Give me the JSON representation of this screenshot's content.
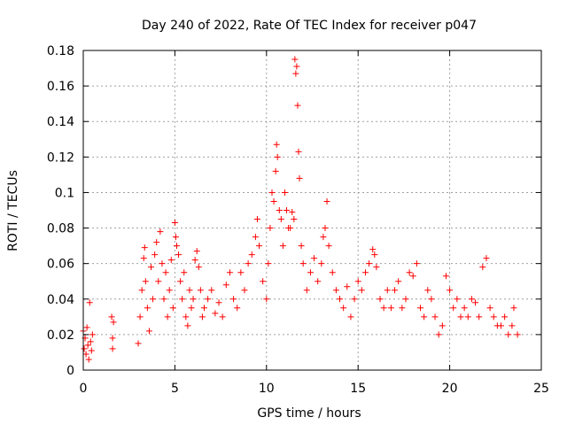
{
  "chart_data": {
    "type": "scatter",
    "title": "Day 240 of 2022, Rate Of TEC Index for receiver p047",
    "xlabel": "GPS time / hours",
    "ylabel": "ROTI / TECUs",
    "xlim": [
      0,
      25
    ],
    "ylim": [
      0,
      0.18
    ],
    "xticks": [
      0,
      5,
      10,
      15,
      20,
      25
    ],
    "yticks": [
      0,
      0.02,
      0.04,
      0.06,
      0.08,
      0.1,
      0.12,
      0.14,
      0.16,
      0.18
    ],
    "xtick_labels": [
      "0",
      "5",
      "10",
      "15",
      "20",
      "25"
    ],
    "ytick_labels": [
      "0",
      "0.02",
      "0.04",
      "0.06",
      "0.08",
      "0.1",
      "0.12",
      "0.14",
      "0.16",
      "0.18"
    ],
    "grid": true,
    "marker": "+",
    "color": "#ff0000",
    "series": [
      {
        "points": [
          [
            0.0,
            0.022
          ],
          [
            0.05,
            0.012
          ],
          [
            0.1,
            0.018
          ],
          [
            0.15,
            0.009
          ],
          [
            0.2,
            0.024
          ],
          [
            0.25,
            0.014
          ],
          [
            0.3,
            0.006
          ],
          [
            0.35,
            0.038
          ],
          [
            0.4,
            0.016
          ],
          [
            0.45,
            0.011
          ],
          [
            0.5,
            0.02
          ],
          [
            1.55,
            0.03
          ],
          [
            1.6,
            0.018
          ],
          [
            1.6,
            0.012
          ],
          [
            1.65,
            0.027
          ],
          [
            3.0,
            0.015
          ],
          [
            3.1,
            0.03
          ],
          [
            3.2,
            0.045
          ],
          [
            3.3,
            0.063
          ],
          [
            3.35,
            0.069
          ],
          [
            3.4,
            0.05
          ],
          [
            3.5,
            0.035
          ],
          [
            3.6,
            0.022
          ],
          [
            3.7,
            0.058
          ],
          [
            3.8,
            0.04
          ],
          [
            3.9,
            0.065
          ],
          [
            4.0,
            0.072
          ],
          [
            4.1,
            0.05
          ],
          [
            4.2,
            0.078
          ],
          [
            4.3,
            0.06
          ],
          [
            4.4,
            0.04
          ],
          [
            4.5,
            0.055
          ],
          [
            4.6,
            0.03
          ],
          [
            4.7,
            0.045
          ],
          [
            4.8,
            0.062
          ],
          [
            4.9,
            0.035
          ],
          [
            5.0,
            0.083
          ],
          [
            5.05,
            0.075
          ],
          [
            5.1,
            0.07
          ],
          [
            5.2,
            0.065
          ],
          [
            5.3,
            0.05
          ],
          [
            5.4,
            0.04
          ],
          [
            5.5,
            0.055
          ],
          [
            5.6,
            0.03
          ],
          [
            5.7,
            0.025
          ],
          [
            5.8,
            0.045
          ],
          [
            5.9,
            0.035
          ],
          [
            6.0,
            0.04
          ],
          [
            6.1,
            0.062
          ],
          [
            6.2,
            0.067
          ],
          [
            6.3,
            0.058
          ],
          [
            6.4,
            0.045
          ],
          [
            6.5,
            0.03
          ],
          [
            6.6,
            0.035
          ],
          [
            6.8,
            0.04
          ],
          [
            7.0,
            0.045
          ],
          [
            7.2,
            0.032
          ],
          [
            7.4,
            0.038
          ],
          [
            7.6,
            0.03
          ],
          [
            7.8,
            0.048
          ],
          [
            8.0,
            0.055
          ],
          [
            8.2,
            0.04
          ],
          [
            8.4,
            0.035
          ],
          [
            8.6,
            0.055
          ],
          [
            8.8,
            0.045
          ],
          [
            9.0,
            0.06
          ],
          [
            9.2,
            0.065
          ],
          [
            9.4,
            0.075
          ],
          [
            9.5,
            0.085
          ],
          [
            9.6,
            0.07
          ],
          [
            9.8,
            0.05
          ],
          [
            10.0,
            0.04
          ],
          [
            10.1,
            0.06
          ],
          [
            10.2,
            0.08
          ],
          [
            10.3,
            0.1
          ],
          [
            10.4,
            0.095
          ],
          [
            10.5,
            0.112
          ],
          [
            10.55,
            0.127
          ],
          [
            10.6,
            0.12
          ],
          [
            10.7,
            0.09
          ],
          [
            10.8,
            0.085
          ],
          [
            10.9,
            0.07
          ],
          [
            11.0,
            0.1
          ],
          [
            11.1,
            0.09
          ],
          [
            11.2,
            0.08
          ],
          [
            11.3,
            0.08
          ],
          [
            11.4,
            0.089
          ],
          [
            11.5,
            0.085
          ],
          [
            11.55,
            0.175
          ],
          [
            11.6,
            0.167
          ],
          [
            11.65,
            0.171
          ],
          [
            11.7,
            0.149
          ],
          [
            11.75,
            0.123
          ],
          [
            11.8,
            0.108
          ],
          [
            11.9,
            0.07
          ],
          [
            12.0,
            0.06
          ],
          [
            12.2,
            0.045
          ],
          [
            12.4,
            0.055
          ],
          [
            12.6,
            0.063
          ],
          [
            12.8,
            0.05
          ],
          [
            13.0,
            0.06
          ],
          [
            13.1,
            0.075
          ],
          [
            13.2,
            0.08
          ],
          [
            13.3,
            0.095
          ],
          [
            13.4,
            0.07
          ],
          [
            13.6,
            0.055
          ],
          [
            13.8,
            0.045
          ],
          [
            14.0,
            0.04
          ],
          [
            14.2,
            0.035
          ],
          [
            14.4,
            0.047
          ],
          [
            14.6,
            0.03
          ],
          [
            14.8,
            0.04
          ],
          [
            15.0,
            0.05
          ],
          [
            15.2,
            0.045
          ],
          [
            15.4,
            0.055
          ],
          [
            15.6,
            0.06
          ],
          [
            15.8,
            0.068
          ],
          [
            15.9,
            0.065
          ],
          [
            16.0,
            0.058
          ],
          [
            16.2,
            0.04
          ],
          [
            16.4,
            0.035
          ],
          [
            16.6,
            0.045
          ],
          [
            16.8,
            0.035
          ],
          [
            17.0,
            0.045
          ],
          [
            17.2,
            0.05
          ],
          [
            17.4,
            0.035
          ],
          [
            17.6,
            0.04
          ],
          [
            17.8,
            0.055
          ],
          [
            18.0,
            0.053
          ],
          [
            18.2,
            0.06
          ],
          [
            18.4,
            0.035
          ],
          [
            18.6,
            0.03
          ],
          [
            18.8,
            0.045
          ],
          [
            19.0,
            0.04
          ],
          [
            19.2,
            0.03
          ],
          [
            19.4,
            0.02
          ],
          [
            19.6,
            0.025
          ],
          [
            19.8,
            0.053
          ],
          [
            20.0,
            0.045
          ],
          [
            20.2,
            0.035
          ],
          [
            20.4,
            0.04
          ],
          [
            20.6,
            0.03
          ],
          [
            20.8,
            0.035
          ],
          [
            21.0,
            0.03
          ],
          [
            21.2,
            0.04
          ],
          [
            21.4,
            0.038
          ],
          [
            21.6,
            0.03
          ],
          [
            21.8,
            0.058
          ],
          [
            22.0,
            0.063
          ],
          [
            22.2,
            0.035
          ],
          [
            22.4,
            0.03
          ],
          [
            22.6,
            0.025
          ],
          [
            22.8,
            0.025
          ],
          [
            23.0,
            0.03
          ],
          [
            23.2,
            0.02
          ],
          [
            23.4,
            0.025
          ],
          [
            23.5,
            0.035
          ],
          [
            23.7,
            0.02
          ]
        ]
      }
    ]
  }
}
